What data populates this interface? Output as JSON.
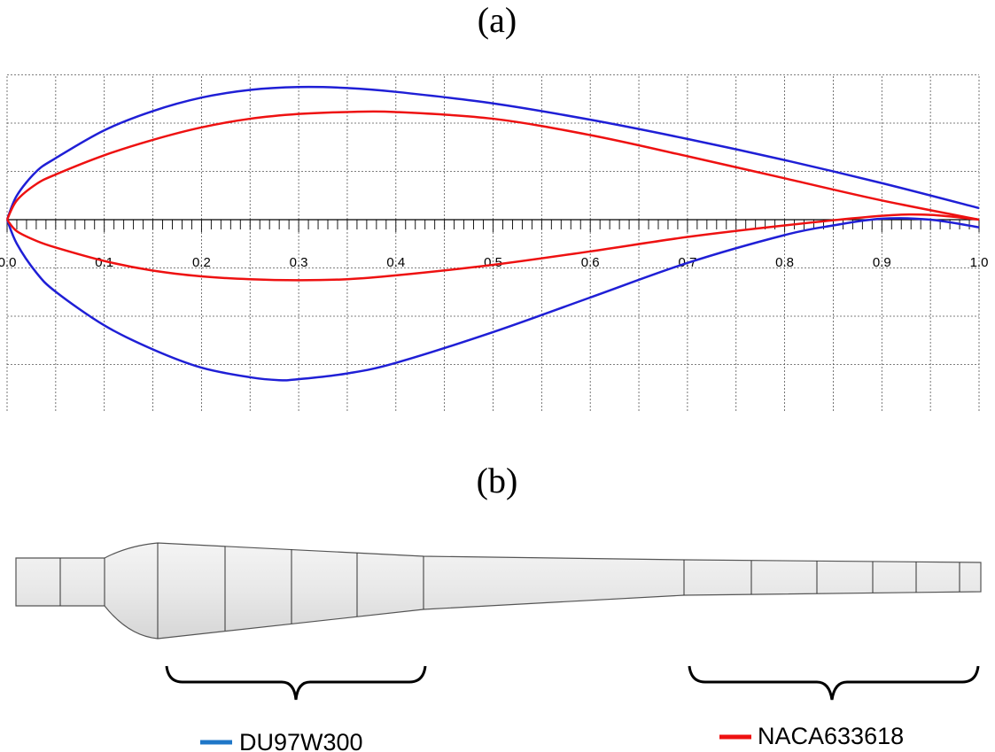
{
  "figure": {
    "panel_a_label": "(a)",
    "panel_b_label": "(b)"
  },
  "chart_data": {
    "type": "line",
    "title": "",
    "xlabel": "",
    "ylabel": "",
    "xlim": [
      0.0,
      1.0
    ],
    "ylim": [
      -0.2,
      0.15
    ],
    "grid": true,
    "x_ticks": [
      "0.0",
      "0.1",
      "0.2",
      "0.3",
      "0.4",
      "0.5",
      "0.6",
      "0.7",
      "0.8",
      "0.9",
      "1.0"
    ],
    "series": [
      {
        "name": "DU97W300",
        "color": "#1f1fd6",
        "upper": [
          [
            0,
            0
          ],
          [
            0.01,
            0.025
          ],
          [
            0.03,
            0.05
          ],
          [
            0.05,
            0.064
          ],
          [
            0.1,
            0.093
          ],
          [
            0.15,
            0.113
          ],
          [
            0.2,
            0.127
          ],
          [
            0.25,
            0.135
          ],
          [
            0.3,
            0.138
          ],
          [
            0.35,
            0.137
          ],
          [
            0.4,
            0.133
          ],
          [
            0.5,
            0.121
          ],
          [
            0.6,
            0.104
          ],
          [
            0.7,
            0.084
          ],
          [
            0.8,
            0.062
          ],
          [
            0.9,
            0.038
          ],
          [
            1.0,
            0.012
          ]
        ],
        "lower": [
          [
            0,
            0
          ],
          [
            0.01,
            -0.025
          ],
          [
            0.03,
            -0.055
          ],
          [
            0.05,
            -0.075
          ],
          [
            0.1,
            -0.11
          ],
          [
            0.15,
            -0.135
          ],
          [
            0.2,
            -0.154
          ],
          [
            0.25,
            -0.164
          ],
          [
            0.28,
            -0.167
          ],
          [
            0.3,
            -0.166
          ],
          [
            0.35,
            -0.16
          ],
          [
            0.4,
            -0.149
          ],
          [
            0.5,
            -0.117
          ],
          [
            0.6,
            -0.081
          ],
          [
            0.7,
            -0.045
          ],
          [
            0.8,
            -0.016
          ],
          [
            0.85,
            -0.006
          ],
          [
            0.9,
            0.001
          ],
          [
            0.95,
            0.0
          ],
          [
            1.0,
            -0.008
          ]
        ]
      },
      {
        "name": "NACA633618",
        "color": "#ee1111",
        "upper": [
          [
            0,
            0
          ],
          [
            0.01,
            0.02
          ],
          [
            0.03,
            0.037
          ],
          [
            0.05,
            0.047
          ],
          [
            0.1,
            0.067
          ],
          [
            0.15,
            0.083
          ],
          [
            0.2,
            0.096
          ],
          [
            0.25,
            0.105
          ],
          [
            0.3,
            0.11
          ],
          [
            0.35,
            0.112
          ],
          [
            0.4,
            0.112
          ],
          [
            0.5,
            0.105
          ],
          [
            0.6,
            0.088
          ],
          [
            0.7,
            0.066
          ],
          [
            0.8,
            0.043
          ],
          [
            0.9,
            0.02
          ],
          [
            1.0,
            0.0
          ]
        ],
        "lower": [
          [
            0,
            0
          ],
          [
            0.01,
            -0.012
          ],
          [
            0.03,
            -0.022
          ],
          [
            0.05,
            -0.029
          ],
          [
            0.1,
            -0.043
          ],
          [
            0.15,
            -0.053
          ],
          [
            0.2,
            -0.059
          ],
          [
            0.25,
            -0.062
          ],
          [
            0.3,
            -0.063
          ],
          [
            0.35,
            -0.062
          ],
          [
            0.4,
            -0.058
          ],
          [
            0.5,
            -0.047
          ],
          [
            0.6,
            -0.033
          ],
          [
            0.7,
            -0.018
          ],
          [
            0.8,
            -0.006
          ],
          [
            0.9,
            0.004
          ],
          [
            0.95,
            0.005
          ],
          [
            1.0,
            0.0
          ]
        ]
      }
    ]
  },
  "blade": {
    "body_color": "#e6e6e6",
    "outline_color": "#555555"
  },
  "legend": [
    {
      "name": "DU97W300",
      "color": "#1f77c8"
    },
    {
      "name": "NACA633618",
      "color": "#ee1111"
    }
  ]
}
